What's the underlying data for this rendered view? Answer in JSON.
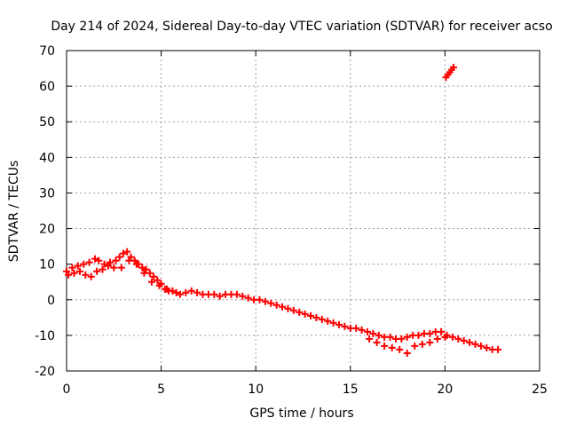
{
  "chart_data": {
    "type": "scatter",
    "title": "Day 214 of 2024, Sidereal Day-to-day VTEC variation (SDTVAR) for receiver acso",
    "xlabel": "GPS time / hours",
    "ylabel": "SDTVAR / TECUs",
    "xlim": [
      0,
      25
    ],
    "ylim": [
      -20,
      70
    ],
    "x_ticks": [
      0,
      5,
      10,
      15,
      20,
      25
    ],
    "y_ticks": [
      -20,
      -10,
      0,
      10,
      20,
      30,
      40,
      50,
      60,
      70
    ],
    "grid": true,
    "legend": "none",
    "marker": "+",
    "series": [
      {
        "name": "SDTVAR",
        "color": "#ff0000",
        "x": [
          0.0,
          0.3,
          0.6,
          0.9,
          1.2,
          1.5,
          1.7,
          2.0,
          2.3,
          2.6,
          2.8,
          3.0,
          3.2,
          3.4,
          3.6,
          3.8,
          4.0,
          4.2,
          4.4,
          4.6,
          4.8,
          5.0,
          5.2,
          5.4,
          5.6,
          5.8,
          6.0,
          6.3,
          6.6,
          6.9,
          7.2,
          7.5,
          7.8,
          8.1,
          8.4,
          8.7,
          9.0,
          9.3,
          9.6,
          9.9,
          10.2,
          10.5,
          10.8,
          11.1,
          11.4,
          11.7,
          12.0,
          12.3,
          12.6,
          12.9,
          13.2,
          13.5,
          13.8,
          14.1,
          14.4,
          14.7,
          15.0,
          15.3,
          15.6,
          15.9,
          16.2,
          16.5,
          16.8,
          17.1,
          17.4,
          17.7,
          18.0,
          18.3,
          18.6,
          18.9,
          19.2,
          19.5,
          19.8,
          20.1,
          20.4,
          20.7,
          21.0,
          21.3,
          21.6,
          21.9,
          22.2,
          22.5,
          22.8,
          0.1,
          0.4,
          0.7,
          1.0,
          1.3,
          1.6,
          1.9,
          2.2,
          2.5,
          2.9,
          3.3,
          3.7,
          4.1,
          4.5,
          4.9,
          5.3,
          16.0,
          16.4,
          16.8,
          17.2,
          17.6,
          18.0,
          18.4,
          18.8,
          19.2,
          19.6,
          20.0,
          20.05,
          20.15,
          20.25,
          20.35,
          20.45
        ],
        "y": [
          8,
          9,
          9.5,
          10,
          10.5,
          11.5,
          11,
          10,
          10.5,
          11,
          12,
          13,
          13.5,
          12,
          11,
          10,
          9,
          8.5,
          7.5,
          6.5,
          5.5,
          4.5,
          3,
          2.5,
          2.5,
          2,
          1.5,
          2,
          2.5,
          2,
          1.5,
          1.5,
          1.5,
          1,
          1.5,
          1.5,
          1.5,
          1,
          0.5,
          0,
          0,
          -0.5,
          -1,
          -1.5,
          -2,
          -2.5,
          -3,
          -3.5,
          -4,
          -4.5,
          -5,
          -5.5,
          -6,
          -6.5,
          -7,
          -7.5,
          -8,
          -8,
          -8.5,
          -9,
          -9.5,
          -10,
          -10.5,
          -10.5,
          -11,
          -11,
          -10.5,
          -10,
          -10,
          -9.5,
          -9.5,
          -9,
          -9,
          -10,
          -10.5,
          -11,
          -11.5,
          -12,
          -12.5,
          -13,
          -13.5,
          -14,
          -14,
          7,
          7.5,
          8,
          7,
          6.5,
          8,
          8.5,
          9.5,
          9,
          9,
          11,
          10,
          7.5,
          5,
          4,
          3,
          -11,
          -12,
          -13,
          -13.5,
          -14,
          -15,
          -13,
          -12.5,
          -12,
          -11,
          -10.5,
          62.5,
          63.2,
          63.9,
          64.6,
          65.3
        ]
      }
    ]
  }
}
